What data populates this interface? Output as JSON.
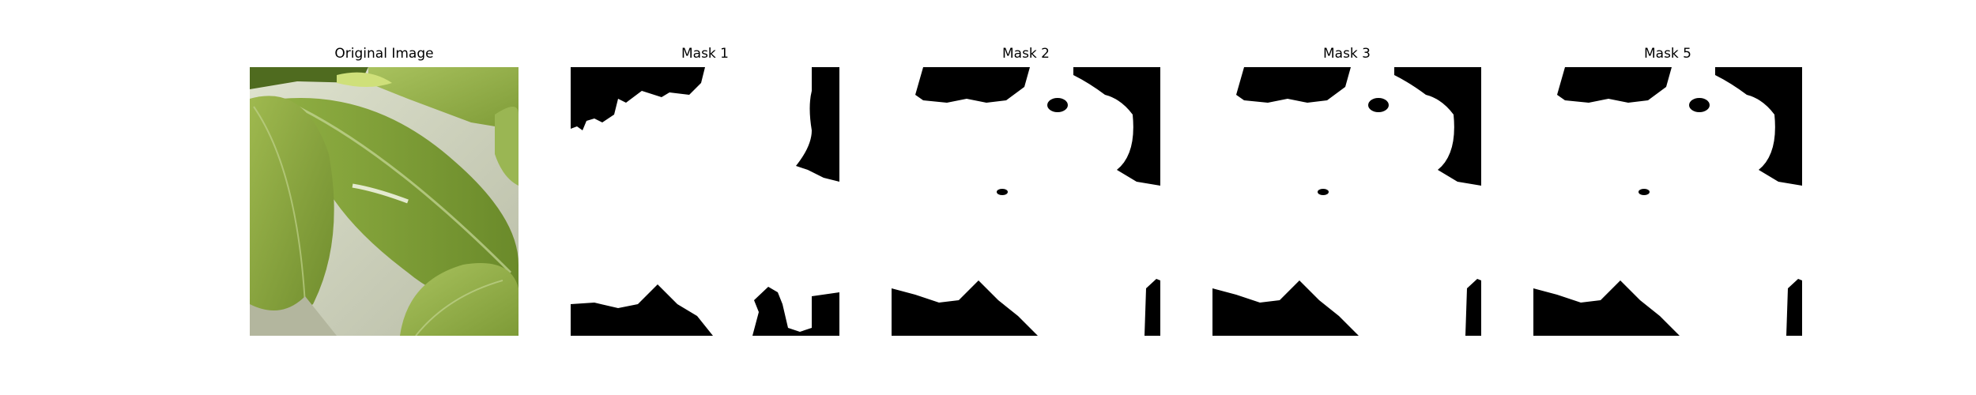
{
  "figure": {
    "panels": [
      {
        "title": "Original Image",
        "kind": "photo"
      },
      {
        "title": "Mask 1",
        "kind": "mask"
      },
      {
        "title": "Mask 2",
        "kind": "mask"
      },
      {
        "title": "Mask 3",
        "kind": "mask"
      },
      {
        "title": "Mask 5",
        "kind": "mask"
      }
    ]
  },
  "colors": {
    "mask_foreground": "#000000",
    "mask_background": "#ffffff",
    "leaf_light": "#a9bf5a",
    "leaf_mid": "#8aa73d",
    "leaf_dark": "#5e7b26",
    "background_gray": "#c9cbb9"
  }
}
